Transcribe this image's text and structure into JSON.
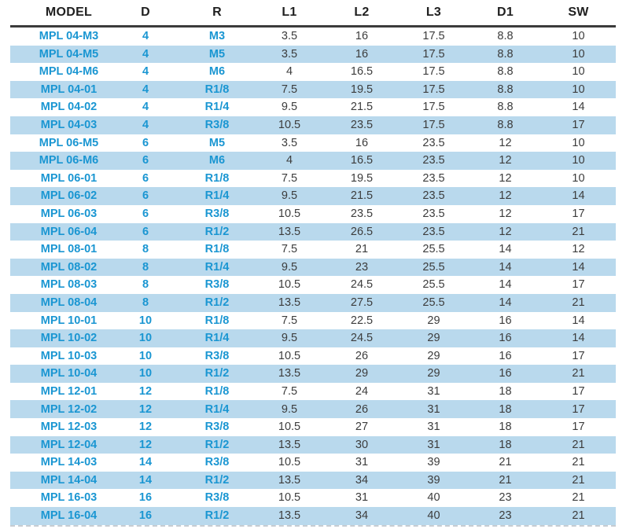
{
  "colors": {
    "alt_row_background": "#b9d9ed",
    "model_text_blue": "#1a96d2",
    "value_text": "#3c3c3c",
    "header_text": "#1f1f1f",
    "header_rule": "#3b3b3b"
  },
  "chart_data": {
    "type": "table",
    "title": "",
    "columns": [
      "MODEL",
      "D",
      "R",
      "L1",
      "L2",
      "L3",
      "D1",
      "SW"
    ],
    "rows": [
      [
        "MPL 04-M3",
        "4",
        "M3",
        "3.5",
        "16",
        "17.5",
        "8.8",
        "10"
      ],
      [
        "MPL 04-M5",
        "4",
        "M5",
        "3.5",
        "16",
        "17.5",
        "8.8",
        "10"
      ],
      [
        "MPL 04-M6",
        "4",
        "M6",
        "4",
        "16.5",
        "17.5",
        "8.8",
        "10"
      ],
      [
        "MPL 04-01",
        "4",
        "R1/8",
        "7.5",
        "19.5",
        "17.5",
        "8.8",
        "10"
      ],
      [
        "MPL 04-02",
        "4",
        "R1/4",
        "9.5",
        "21.5",
        "17.5",
        "8.8",
        "14"
      ],
      [
        "MPL 04-03",
        "4",
        "R3/8",
        "10.5",
        "23.5",
        "17.5",
        "8.8",
        "17"
      ],
      [
        "MPL 06-M5",
        "6",
        "M5",
        "3.5",
        "16",
        "23.5",
        "12",
        "10"
      ],
      [
        "MPL 06-M6",
        "6",
        "M6",
        "4",
        "16.5",
        "23.5",
        "12",
        "10"
      ],
      [
        "MPL 06-01",
        "6",
        "R1/8",
        "7.5",
        "19.5",
        "23.5",
        "12",
        "10"
      ],
      [
        "MPL 06-02",
        "6",
        "R1/4",
        "9.5",
        "21.5",
        "23.5",
        "12",
        "14"
      ],
      [
        "MPL 06-03",
        "6",
        "R3/8",
        "10.5",
        "23.5",
        "23.5",
        "12",
        "17"
      ],
      [
        "MPL 06-04",
        "6",
        "R1/2",
        "13.5",
        "26.5",
        "23.5",
        "12",
        "21"
      ],
      [
        "MPL 08-01",
        "8",
        "R1/8",
        "7.5",
        "21",
        "25.5",
        "14",
        "12"
      ],
      [
        "MPL 08-02",
        "8",
        "R1/4",
        "9.5",
        "23",
        "25.5",
        "14",
        "14"
      ],
      [
        "MPL 08-03",
        "8",
        "R3/8",
        "10.5",
        "24.5",
        "25.5",
        "14",
        "17"
      ],
      [
        "MPL 08-04",
        "8",
        "R1/2",
        "13.5",
        "27.5",
        "25.5",
        "14",
        "21"
      ],
      [
        "MPL 10-01",
        "10",
        "R1/8",
        "7.5",
        "22.5",
        "29",
        "16",
        "14"
      ],
      [
        "MPL 10-02",
        "10",
        "R1/4",
        "9.5",
        "24.5",
        "29",
        "16",
        "14"
      ],
      [
        "MPL 10-03",
        "10",
        "R3/8",
        "10.5",
        "26",
        "29",
        "16",
        "17"
      ],
      [
        "MPL 10-04",
        "10",
        "R1/2",
        "13.5",
        "29",
        "29",
        "16",
        "21"
      ],
      [
        "MPL 12-01",
        "12",
        "R1/8",
        "7.5",
        "24",
        "31",
        "18",
        "17"
      ],
      [
        "MPL 12-02",
        "12",
        "R1/4",
        "9.5",
        "26",
        "31",
        "18",
        "17"
      ],
      [
        "MPL 12-03",
        "12",
        "R3/8",
        "10.5",
        "27",
        "31",
        "18",
        "17"
      ],
      [
        "MPL 12-04",
        "12",
        "R1/2",
        "13.5",
        "30",
        "31",
        "18",
        "21"
      ],
      [
        "MPL 14-03",
        "14",
        "R3/8",
        "10.5",
        "31",
        "39",
        "21",
        "21"
      ],
      [
        "MPL 14-04",
        "14",
        "R1/2",
        "13.5",
        "34",
        "39",
        "21",
        "21"
      ],
      [
        "MPL 16-03",
        "16",
        "R3/8",
        "10.5",
        "31",
        "40",
        "23",
        "21"
      ],
      [
        "MPL 16-04",
        "16",
        "R1/2",
        "13.5",
        "34",
        "40",
        "23",
        "21"
      ]
    ],
    "layout": {
      "grid": false,
      "alternating_row_shading": true,
      "header_rule": true,
      "blue_text_columns": [
        "MODEL",
        "D",
        "R"
      ]
    }
  }
}
